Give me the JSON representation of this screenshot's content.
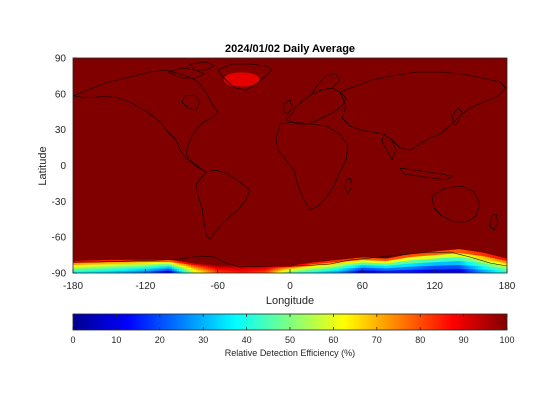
{
  "chart_data": {
    "type": "heatmap",
    "title": "2024/01/02 Daily Average",
    "xlabel": "Longitude",
    "ylabel": "Latitude",
    "xlim": [
      -180,
      180
    ],
    "ylim": [
      -90,
      90
    ],
    "xticks": [
      -180,
      -120,
      -60,
      0,
      60,
      120,
      180
    ],
    "yticks": [
      -90,
      -60,
      -30,
      0,
      30,
      60,
      90
    ],
    "grid": false,
    "overlay": "coastlines",
    "colormap": "jet",
    "colorbar": {
      "label": "Relative Detection Efficiency (%)",
      "range": [
        0,
        100
      ],
      "ticks": [
        0,
        10,
        20,
        30,
        40,
        50,
        60,
        70,
        80,
        90,
        100
      ],
      "orientation": "horizontal"
    },
    "background_value": 100,
    "greenland_value": 90,
    "southern_boundary_profile": {
      "lon": [
        -180,
        -150,
        -120,
        -100,
        -80,
        -60,
        -40,
        -20,
        0,
        20,
        40,
        60,
        80,
        100,
        120,
        140,
        160,
        180
      ],
      "deficit_edge_lat": [
        -80,
        -79,
        -79,
        -79,
        -82,
        -84,
        -84,
        -84,
        -84,
        -81,
        -79,
        -77,
        -78,
        -74,
        -72,
        -70,
        -73,
        -78
      ],
      "min_value": [
        35,
        30,
        20,
        5,
        55,
        80,
        85,
        80,
        45,
        35,
        25,
        5,
        10,
        10,
        5,
        5,
        25,
        40
      ]
    }
  }
}
